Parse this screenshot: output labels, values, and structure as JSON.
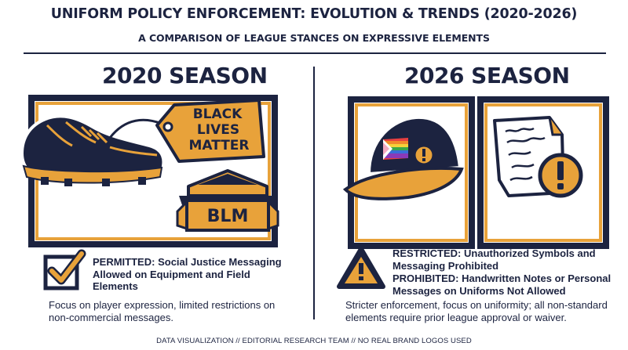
{
  "header": {
    "title": "UNIFORM POLICY ENFORCEMENT: EVOLUTION & TRENDS (2020-2026)",
    "subtitle": "A COMPARISON OF LEAGUE STANCES ON EXPRESSIVE ELEMENTS"
  },
  "left": {
    "season": "2020 SEASON",
    "tag_text": [
      "BLACK",
      "LIVES",
      "MATTER"
    ],
    "base_text": "BLM",
    "status_keyword": "PERMITTED:",
    "status_line1": "Social Justice Messaging",
    "status_line2": "Allowed on Equipment and Field",
    "status_line3": "Elements",
    "desc_line1": "Focus on player expression, limited restrictions on",
    "desc_line2": "non-commercial messages.",
    "status_icon": "checkmark-icon"
  },
  "right": {
    "season": "2026 SEASON",
    "status1_keyword": "RESTRICTED:",
    "status1_line1": "Unauthorized Symbols and",
    "status1_line2": "Messaging Prohibited",
    "status2_keyword": "PROHIBITED:",
    "status2_line1": "Handwritten Notes or Personal",
    "status2_line2": "Messages on Uniforms Not Allowed",
    "desc_line1": "Stricter enforcement, focus on uniformity; all non-standard",
    "desc_line2": "elements require prior league approval or waiver.",
    "status_icon": "warning-triangle-icon"
  },
  "footer": "DATA VISUALIZATION // EDITORIAL RESEARCH TEAM // NO REAL BRAND LOGOS USED",
  "colors": {
    "navy": "#1c2340",
    "gold": "#e8a23a",
    "white": "#ffffff"
  }
}
